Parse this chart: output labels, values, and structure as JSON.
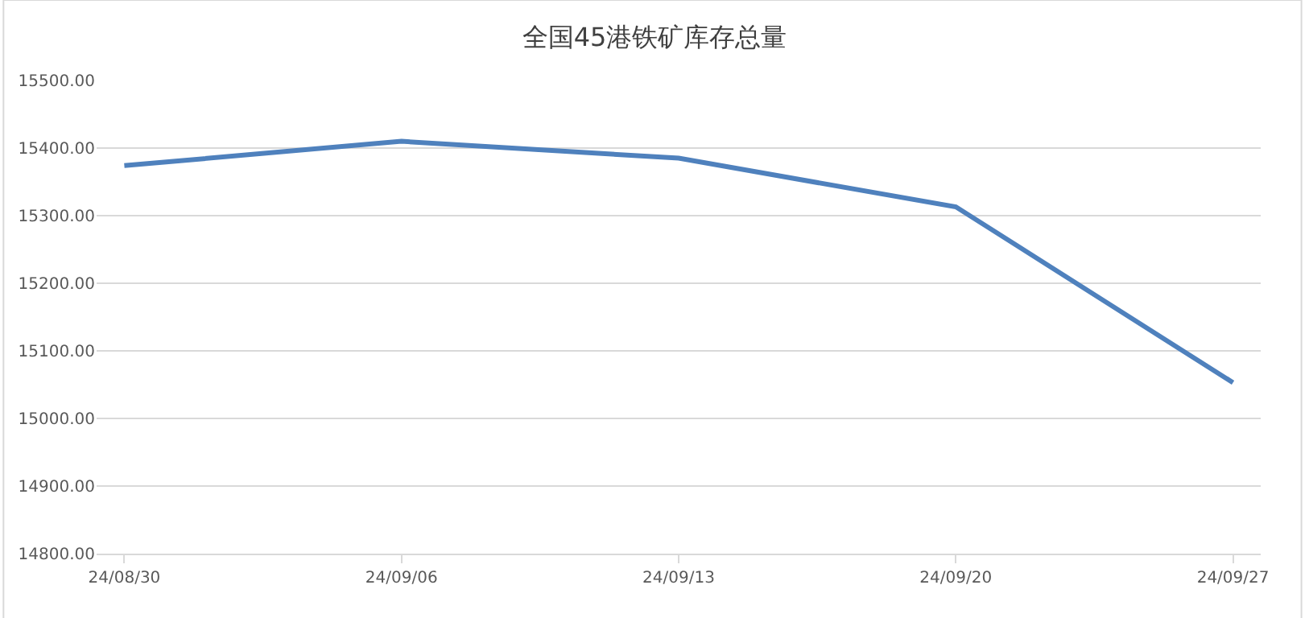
{
  "chart_data": {
    "type": "line",
    "title": "全国45港铁矿库存总量",
    "categories": [
      "24/08/30",
      "24/09/06",
      "24/09/13",
      "24/09/20",
      "24/09/27"
    ],
    "series": [
      {
        "color": "#4f81bd",
        "values": [
          15374,
          15410,
          15385,
          15313,
          15053
        ]
      }
    ],
    "ylim": [
      14800,
      15500
    ],
    "yticks": [
      {
        "value": 14800,
        "label": "14800.00"
      },
      {
        "value": 14900,
        "label": "14900.00"
      },
      {
        "value": 15000,
        "label": "15000.00"
      },
      {
        "value": 15100,
        "label": "15100.00"
      },
      {
        "value": 15200,
        "label": "15200.00"
      },
      {
        "value": 15300,
        "label": "15300.00"
      },
      {
        "value": 15400,
        "label": "15400.00"
      },
      {
        "value": 15500,
        "label": "15500.00"
      }
    ],
    "grid": "y",
    "legend": false,
    "marker": "none",
    "line_style": "solid"
  }
}
